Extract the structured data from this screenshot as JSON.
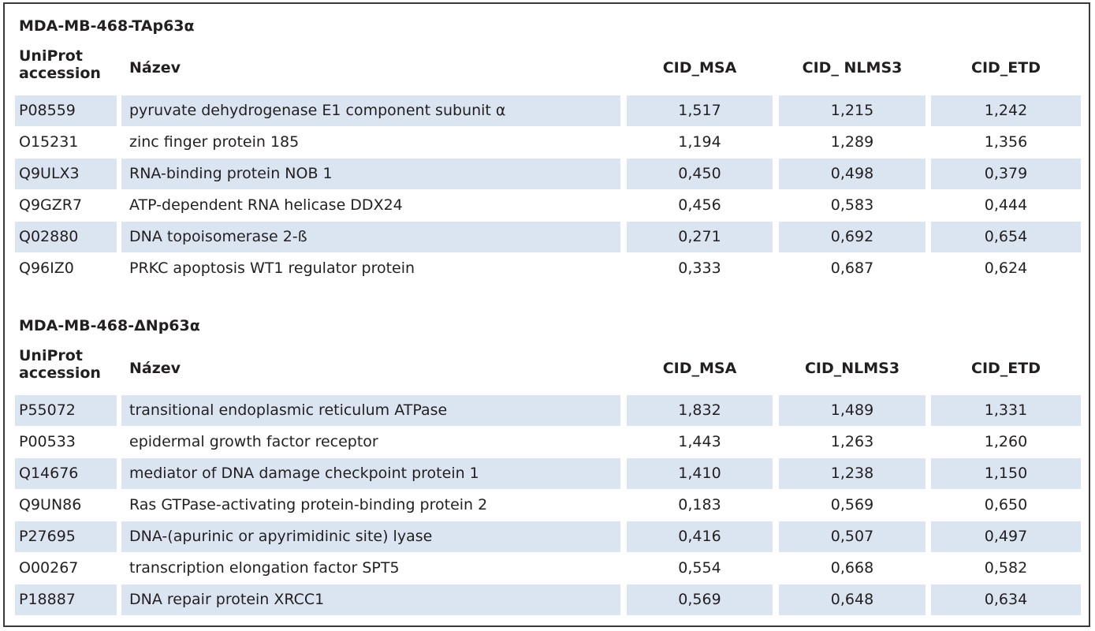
{
  "tables": [
    {
      "title": "MDA-MB-468-TAp63α",
      "headers": {
        "accession_line1": "UniProt",
        "accession_line2": "accession",
        "name": "Název",
        "cid_msa": "CID_MSA",
        "cid_nlms3": "CID_ NLMS3",
        "cid_etd": "CID_ETD"
      },
      "rows": [
        {
          "accession": "P08559",
          "name": "pyruvate dehydrogenase E1 component subunit α",
          "cid_msa": "1,517",
          "cid_nlms3": "1,215",
          "cid_etd": "1,242"
        },
        {
          "accession": "O15231",
          "name": "zinc finger protein 185",
          "cid_msa": "1,194",
          "cid_nlms3": "1,289",
          "cid_etd": "1,356"
        },
        {
          "accession": "Q9ULX3",
          "name": "RNA-binding protein NOB 1",
          "cid_msa": "0,450",
          "cid_nlms3": "0,498",
          "cid_etd": "0,379"
        },
        {
          "accession": "Q9GZR7",
          "name": "ATP-dependent RNA helicase DDX24",
          "cid_msa": "0,456",
          "cid_nlms3": "0,583",
          "cid_etd": "0,444"
        },
        {
          "accession": "Q02880",
          "name": "DNA topoisomerase 2-ß",
          "cid_msa": "0,271",
          "cid_nlms3": "0,692",
          "cid_etd": "0,654"
        },
        {
          "accession": "Q96IZ0",
          "name": "PRKC apoptosis WT1 regulator protein",
          "cid_msa": "0,333",
          "cid_nlms3": "0,687",
          "cid_etd": "0,624"
        }
      ]
    },
    {
      "title": "MDA-MB-468-ΔNp63α",
      "headers": {
        "accession_line1": "UniProt",
        "accession_line2": "accession",
        "name": "Název",
        "cid_msa": "CID_MSA",
        "cid_nlms3": "CID_NLMS3",
        "cid_etd": "CID_ETD"
      },
      "rows": [
        {
          "accession": "P55072",
          "name": "transitional endoplasmic reticulum ATPase",
          "cid_msa": "1,832",
          "cid_nlms3": "1,489",
          "cid_etd": "1,331"
        },
        {
          "accession": "P00533",
          "name": "epidermal growth factor receptor",
          "cid_msa": "1,443",
          "cid_nlms3": "1,263",
          "cid_etd": "1,260"
        },
        {
          "accession": "Q14676",
          "name": "mediator of DNA damage checkpoint protein 1",
          "cid_msa": "1,410",
          "cid_nlms3": "1,238",
          "cid_etd": "1,150"
        },
        {
          "accession": "Q9UN86",
          "name": "Ras GTPase-activating protein-binding protein 2",
          "cid_msa": "0,183",
          "cid_nlms3": "0,569",
          "cid_etd": "0,650"
        },
        {
          "accession": "P27695",
          "name": "DNA-(apurinic or apyrimidinic site) lyase",
          "cid_msa": "0,416",
          "cid_nlms3": "0,507",
          "cid_etd": "0,497"
        },
        {
          "accession": "O00267",
          "name": "transcription elongation factor SPT5",
          "cid_msa": "0,554",
          "cid_nlms3": "0,668",
          "cid_etd": "0,582"
        },
        {
          "accession": "P18887",
          "name": "DNA repair protein XRCC1",
          "cid_msa": "0,569",
          "cid_nlms3": "0,648",
          "cid_etd": "0,634"
        }
      ]
    }
  ],
  "colors": {
    "row_shade": "#dbe5f1",
    "border": "#3a3a3a",
    "text": "#231f20"
  }
}
